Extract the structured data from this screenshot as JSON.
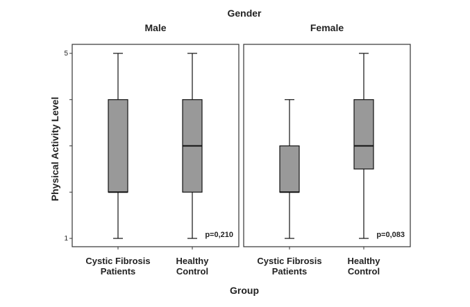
{
  "chart_data": {
    "type": "boxplot",
    "title": "Gender",
    "xlabel": "Group",
    "ylabel": "Physical Activity Level",
    "ylim": [
      1,
      5
    ],
    "yticks": [
      1,
      2,
      3,
      4,
      5
    ],
    "ytick_labels": [
      "1",
      "",
      "",
      "",
      "5"
    ],
    "grid": false,
    "box_color": "#999999",
    "panels": [
      {
        "name": "Male",
        "annotation": "p=0,210",
        "categories": [
          "Cystic Fibrosis\nPatients",
          "Healthy\nControl"
        ],
        "boxes": [
          {
            "min": 1,
            "q1": 2,
            "median": 2,
            "q3": 4,
            "max": 5
          },
          {
            "min": 1,
            "q1": 2,
            "median": 3,
            "q3": 4,
            "max": 5
          }
        ]
      },
      {
        "name": "Female",
        "annotation": "p=0,083",
        "categories": [
          "Cystic Fibrosis\nPatients",
          "Healthy\nControl"
        ],
        "boxes": [
          {
            "min": 1,
            "q1": 2,
            "median": 2,
            "q3": 3,
            "max": 4
          },
          {
            "min": 1,
            "q1": 2.5,
            "median": 3,
            "q3": 4,
            "max": 5
          }
        ]
      }
    ]
  }
}
